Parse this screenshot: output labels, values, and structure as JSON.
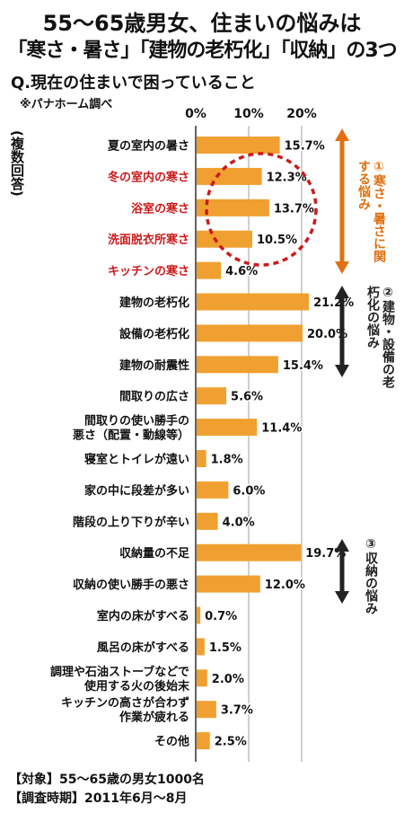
{
  "title": {
    "line1": "55～65歳男女、住まいの悩みは",
    "line2": "「寒さ・暑さ」「建物の老朽化」「収納」の3つ"
  },
  "subtitle": "Q.現在の住まいで困っていること",
  "source": "※パナホーム調べ",
  "multi_answer_note": "(複数回答)",
  "footer": {
    "subject": "【対象】55～65歳の男女1000名",
    "period": "【調査時期】2011年6月～8月"
  },
  "annotations": [
    {
      "text": "①寒さ・暑さに関する悩み",
      "color": "#e07010"
    },
    {
      "text": "②建物・設備の老朽化の悩み",
      "color": "#222222"
    },
    {
      "text": "③収納の悩み",
      "color": "#222222"
    }
  ],
  "colors": {
    "bar": "#f0a030",
    "highlight_text": "#cc1a1a",
    "normal_text": "#111111",
    "circle": "#cc1a1a"
  },
  "chart_data": {
    "type": "bar",
    "orientation": "horizontal",
    "ticks": [
      "0%",
      "10%",
      "20%"
    ],
    "xlim": [
      0,
      25
    ],
    "grid": true,
    "categories": [
      {
        "label": "夏の室内の暑さ",
        "value": 15.7,
        "value_label": "15.7%",
        "highlight": false
      },
      {
        "label": "冬の室内の寒さ",
        "value": 12.3,
        "value_label": "12.3%",
        "highlight": true
      },
      {
        "label": "浴室の寒さ",
        "value": 13.7,
        "value_label": "13.7%",
        "highlight": true
      },
      {
        "label": "洗面脱衣所寒さ",
        "value": 10.5,
        "value_label": "10.5%",
        "highlight": true
      },
      {
        "label": "キッチンの寒さ",
        "value": 4.6,
        "value_label": "4.6%",
        "highlight": true
      },
      {
        "label": "建物の老朽化",
        "value": 21.2,
        "value_label": "21.2%",
        "highlight": false
      },
      {
        "label": "設備の老朽化",
        "value": 20.0,
        "value_label": "20.0%",
        "highlight": false
      },
      {
        "label": "建物の耐震性",
        "value": 15.4,
        "value_label": "15.4%",
        "highlight": false
      },
      {
        "label": "間取りの広さ",
        "value": 5.6,
        "value_label": "5.6%",
        "highlight": false
      },
      {
        "label": "間取りの使い勝手の\n悪さ（配置・動線等）",
        "value": 11.4,
        "value_label": "11.4%",
        "highlight": false
      },
      {
        "label": "寝室とトイレが遠い",
        "value": 1.8,
        "value_label": "1.8%",
        "highlight": false
      },
      {
        "label": "家の中に段差が多い",
        "value": 6.0,
        "value_label": "6.0%",
        "highlight": false
      },
      {
        "label": "階段の上り下りが辛い",
        "value": 4.0,
        "value_label": "4.0%",
        "highlight": false
      },
      {
        "label": "収納量の不足",
        "value": 19.7,
        "value_label": "19.7%",
        "highlight": false
      },
      {
        "label": "収納の使い勝手の悪さ",
        "value": 12.0,
        "value_label": "12.0%",
        "highlight": false
      },
      {
        "label": "室内の床がすべる",
        "value": 0.7,
        "value_label": "0.7%",
        "highlight": false
      },
      {
        "label": "風呂の床がすべる",
        "value": 1.5,
        "value_label": "1.5%",
        "highlight": false
      },
      {
        "label": "調理や石油ストーブなどで\n使用する火の後始末",
        "value": 2.0,
        "value_label": "2.0%",
        "highlight": false
      },
      {
        "label": "キッチンの高さが合わず\n作業が疲れる",
        "value": 3.7,
        "value_label": "3.7%",
        "highlight": false
      },
      {
        "label": "その他",
        "value": 2.5,
        "value_label": "2.5%",
        "highlight": false
      }
    ]
  }
}
